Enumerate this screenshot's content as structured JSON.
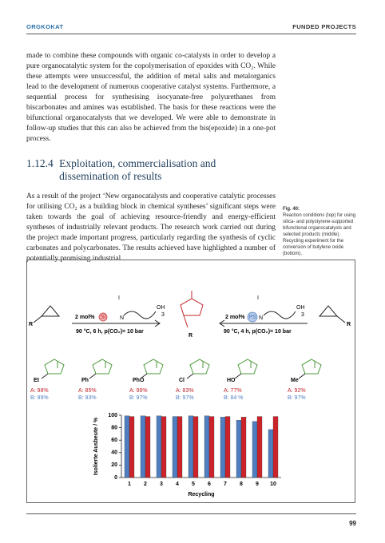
{
  "header": {
    "left": "ORGKOKAT",
    "right": "FUNDED PROJECTS"
  },
  "paragraphs": [
    "made to combine these compounds with organic co-catalysts in order to develop a pure organocatalytic system for the copolymerisation of epoxides with CO₂. While these attempts were unsuccessful, the addition of metal salts and metalorganics lead to the development of numerous cooperative catalyst systems. Furthermore, a sequential process for synthesising isocyanate-free polyurethanes from biscarbonates and amines was established. The basis for these reactions were the bifunctional organocatalysts that we developed. We were able to demonstrate in follow-up studies that this can also be achieved from the bis(epoxide) in a one-pot process.",
    "As a result of the project ‘New organocatalysts and cooperative catalytic processes for utilising CO₂ as a building block in chemical syntheses’ significant steps were taken towards the goal of achieving resource-friendly and energy-efficient syntheses of industrially relevant products. The research work carried out during the project made important progress, particularly regarding the synthesis of cyclic carbonates and polycarbonates. The results achieved have highlighted a number of potentially promising industrial"
  ],
  "section": {
    "number": "1.12.4",
    "title": "Exploitation, commercialisation and dissemination of results"
  },
  "caption": {
    "label": "Fig. 40:",
    "text": "Reaction conditions (top) for using silica- and polystyrene-supported bifunctional organocatalysts and selected products (middle). Recycling experiment for the conversion of butylene oxide (bottom)."
  },
  "scheme": {
    "left_loading": "2 mol%",
    "left_support": "Si",
    "left_conditions": "90 °C, 6 h, p(CO₂)= 10 bar",
    "right_loading": "2 mol%",
    "right_support": "PS",
    "right_conditions": "90 °C, 4 h, p(CO₂)= 10 bar",
    "amine": "N",
    "anion": "I",
    "hydroxy": "OH",
    "count": "3",
    "substituent": "R"
  },
  "products": [
    {
      "group": "Et",
      "a": "A: 98%",
      "b": "B: 99%"
    },
    {
      "group": "Ph",
      "a": "A: 85%",
      "b": "B: 93%"
    },
    {
      "group": "PhO",
      "a": "A: 98%",
      "b": "B: 97%"
    },
    {
      "group": "Cl",
      "a": "A: 83%",
      "b": "B: 97%"
    },
    {
      "group": "HO",
      "a": "A: 77%",
      "b": "B: 84 %"
    },
    {
      "group": "Me",
      "a": "A: 92%",
      "b": "B: 97%"
    }
  ],
  "chart_data": {
    "type": "bar",
    "categories": [
      "1",
      "2",
      "3",
      "4",
      "5",
      "6",
      "7",
      "8",
      "9",
      "10"
    ],
    "series": [
      {
        "color": "#4f7fc0",
        "values": [
          99,
          99,
          99,
          98,
          99,
          99,
          97,
          92,
          90,
          77
        ]
      },
      {
        "color": "#cc2229",
        "values": [
          98,
          98,
          98,
          98,
          98,
          98,
          98,
          97,
          98,
          98
        ]
      }
    ],
    "ylim": [
      0,
      100
    ],
    "yticks": [
      0,
      20,
      40,
      60,
      80,
      100
    ],
    "ylabel": "Isolierte Ausbeute / %",
    "xlabel": "Recycling"
  },
  "page_number": "99"
}
